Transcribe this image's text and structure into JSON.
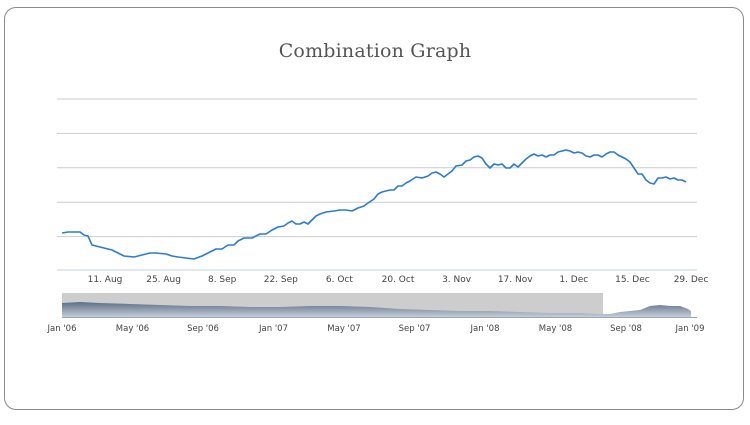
{
  "chart_data": {
    "type": "line",
    "title": "Combination Graph",
    "xlabel": "",
    "ylabel": "",
    "x_ticks": [
      "11. Aug",
      "25. Aug",
      "8. Sep",
      "22. Sep",
      "6. Oct",
      "20. Oct",
      "3. Nov",
      "17. Nov",
      "1. Dec",
      "15. Dec",
      "29. Dec"
    ],
    "y_gridlines": 5,
    "grid": true,
    "legend": "none",
    "series": [
      {
        "color": "#2b7bd6",
        "values": [
          [
            0,
            237
          ],
          [
            3,
            238
          ],
          [
            9,
            238
          ],
          [
            11,
            235
          ],
          [
            13,
            234
          ],
          [
            15,
            225
          ],
          [
            17,
            224
          ],
          [
            21,
            222
          ],
          [
            25,
            220
          ],
          [
            28,
            217
          ],
          [
            31,
            214
          ],
          [
            36,
            213
          ],
          [
            40,
            215
          ],
          [
            44,
            217
          ],
          [
            47,
            217
          ],
          [
            52,
            216
          ],
          [
            55,
            214
          ],
          [
            58,
            213
          ],
          [
            62,
            212
          ],
          [
            66,
            211
          ],
          [
            70,
            214
          ],
          [
            73,
            217
          ],
          [
            77,
            221
          ],
          [
            80,
            221
          ],
          [
            83,
            225
          ],
          [
            86,
            225
          ],
          [
            88,
            229
          ],
          [
            91,
            232
          ],
          [
            95,
            232
          ],
          [
            99,
            236
          ],
          [
            102,
            236
          ],
          [
            105,
            240
          ],
          [
            108,
            243
          ],
          [
            111,
            244
          ],
          [
            113,
            247
          ],
          [
            115,
            249
          ],
          [
            117,
            246
          ],
          [
            119,
            246
          ],
          [
            121,
            248
          ],
          [
            123,
            246
          ],
          [
            125,
            250
          ],
          [
            127,
            254
          ],
          [
            129,
            256
          ],
          [
            132,
            258
          ],
          [
            136,
            259
          ],
          [
            139,
            260
          ],
          [
            142,
            260
          ],
          [
            145,
            259
          ],
          [
            148,
            262
          ],
          [
            151,
            264
          ],
          [
            153,
            267
          ],
          [
            156,
            271
          ],
          [
            158,
            276
          ],
          [
            160,
            278
          ],
          [
            162,
            279
          ],
          [
            164,
            280
          ],
          [
            166,
            280
          ],
          [
            168,
            284
          ],
          [
            170,
            284
          ],
          [
            172,
            287
          ],
          [
            174,
            289
          ],
          [
            177,
            293
          ],
          [
            180,
            292
          ],
          [
            183,
            294
          ],
          [
            185,
            297
          ],
          [
            187,
            298
          ],
          [
            189,
            296
          ],
          [
            191,
            293
          ],
          [
            193,
            296
          ],
          [
            195,
            299
          ],
          [
            197,
            304
          ],
          [
            200,
            305
          ],
          [
            202,
            309
          ],
          [
            204,
            310
          ],
          [
            206,
            313
          ],
          [
            208,
            314
          ],
          [
            210,
            312
          ],
          [
            212,
            306
          ],
          [
            214,
            302
          ],
          [
            216,
            306
          ],
          [
            218,
            305
          ],
          [
            220,
            306
          ],
          [
            222,
            302
          ],
          [
            224,
            302
          ],
          [
            226,
            306
          ],
          [
            228,
            303
          ],
          [
            230,
            307
          ],
          [
            232,
            311
          ],
          [
            234,
            314
          ],
          [
            236,
            316
          ],
          [
            238,
            314
          ],
          [
            240,
            315
          ],
          [
            242,
            313
          ],
          [
            244,
            315
          ],
          [
            246,
            315
          ],
          [
            248,
            318
          ],
          [
            250,
            319
          ],
          [
            252,
            320
          ],
          [
            254,
            319
          ],
          [
            256,
            317
          ],
          [
            258,
            318
          ],
          [
            260,
            317
          ],
          [
            262,
            314
          ],
          [
            264,
            313
          ],
          [
            266,
            315
          ],
          [
            268,
            315
          ],
          [
            270,
            313
          ],
          [
            272,
            316
          ],
          [
            274,
            318
          ],
          [
            276,
            318
          ],
          [
            278,
            315
          ],
          [
            280,
            313
          ],
          [
            282,
            311
          ],
          [
            284,
            308
          ],
          [
            286,
            302
          ],
          [
            288,
            296
          ],
          [
            290,
            296
          ],
          [
            292,
            290
          ],
          [
            294,
            287
          ],
          [
            296,
            286
          ],
          [
            298,
            292
          ],
          [
            300,
            292
          ],
          [
            302,
            293
          ],
          [
            304,
            291
          ],
          [
            306,
            292
          ],
          [
            308,
            290
          ],
          [
            310,
            290
          ],
          [
            312,
            288
          ]
        ]
      }
    ],
    "navigator": {
      "x_ticks": [
        "Jan '06",
        "May '06",
        "Sep '06",
        "Jan '07",
        "May '07",
        "Sep '07",
        "Jan '08",
        "May '08",
        "Sep '08",
        "Jan '09"
      ]
    }
  },
  "colors": {
    "line": "#2b7bd6",
    "grid": "#cccccc",
    "navigator_mask": "#cdcdcd",
    "navigator_fill_top": "#5d6f86",
    "navigator_fill_bottom": "#c4ccd8"
  }
}
